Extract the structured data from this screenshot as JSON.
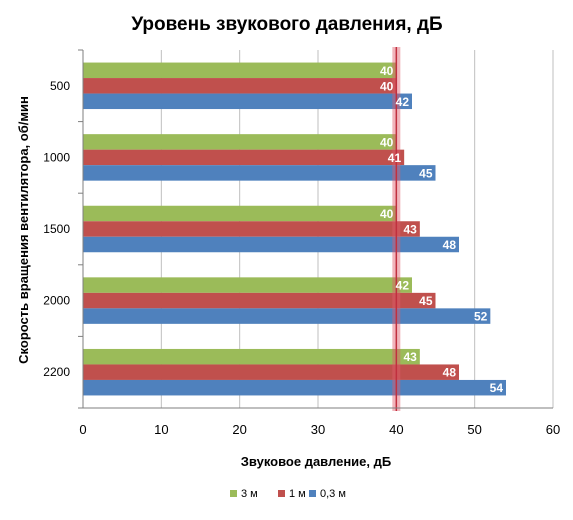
{
  "colors": {
    "s_3m": "#9bbb59",
    "s_1m": "#c0504d",
    "s_03m": "#4f81bd",
    "refline": "#e05a6a",
    "grid": "#bfbfbf",
    "axis": "#7f7f7f",
    "text": "#000000",
    "datalabel": "#ffffff"
  },
  "chart_data": {
    "type": "bar",
    "orientation": "horizontal",
    "title": "Уровень звукового давления, дБ",
    "xlabel": "Звуковое давление, дБ",
    "ylabel": "Скорость вращения вентилятора, об/мин",
    "xlim": [
      0,
      60
    ],
    "xticks": [
      "0",
      "10",
      "20",
      "30",
      "40",
      "50",
      "60"
    ],
    "categories": [
      "500",
      "1000",
      "1500",
      "2000",
      "2200"
    ],
    "series": [
      {
        "name": "3 м",
        "color_key": "s_3m",
        "values": [
          40,
          40,
          40,
          42,
          43
        ]
      },
      {
        "name": "1 м",
        "color_key": "s_1m",
        "values": [
          40,
          41,
          43,
          45,
          48
        ]
      },
      {
        "name": "0,3 м",
        "color_key": "s_03m",
        "values": [
          42,
          45,
          48,
          52,
          54
        ]
      }
    ],
    "reference_line": {
      "x": 40
    },
    "grid": true,
    "legend": "bottom"
  }
}
